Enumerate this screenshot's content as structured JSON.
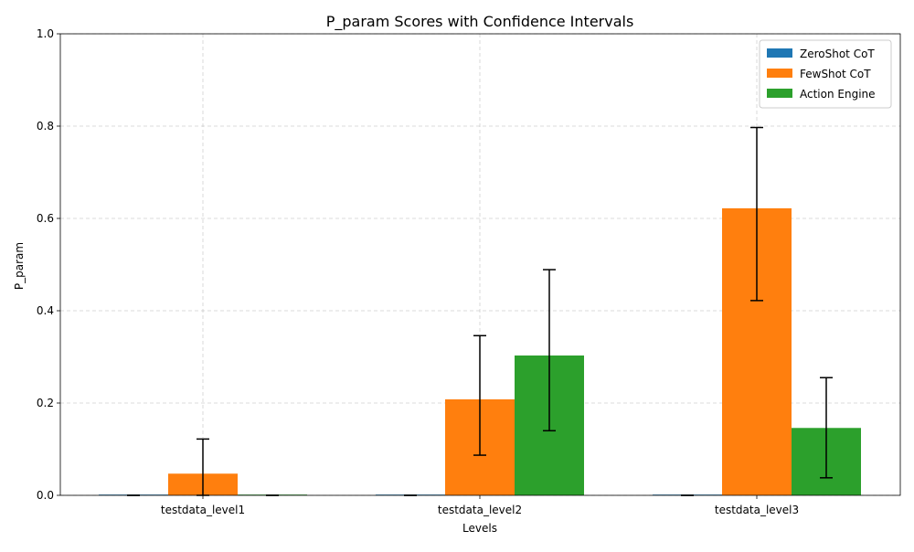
{
  "chart_data": {
    "type": "bar",
    "title": "P_param Scores with Confidence Intervals",
    "xlabel": "Levels",
    "ylabel": "P_param",
    "ylim": [
      0,
      1.0
    ],
    "yticks": [
      "0.0",
      "0.2",
      "0.4",
      "0.6",
      "0.8",
      "1.0"
    ],
    "categories": [
      "testdata_level1",
      "testdata_level2",
      "testdata_level3"
    ],
    "series": [
      {
        "name": "ZeroShot CoT",
        "color": "#1f77b4",
        "values": [
          0.0,
          0.0,
          0.0
        ],
        "ci_low": [
          0.0,
          0.0,
          0.0
        ],
        "ci_high": [
          0.0,
          0.0,
          0.0
        ]
      },
      {
        "name": "FewShot CoT",
        "color": "#ff7f0e",
        "values": [
          0.047,
          0.208,
          0.622
        ],
        "ci_low": [
          0.0,
          0.087,
          0.422
        ],
        "ci_high": [
          0.122,
          0.346,
          0.797
        ]
      },
      {
        "name": "Action Engine",
        "color": "#2ca02c",
        "values": [
          0.0,
          0.303,
          0.146
        ],
        "ci_low": [
          0.0,
          0.14,
          0.038
        ],
        "ci_high": [
          0.0,
          0.489,
          0.255
        ]
      }
    ],
    "grid": true,
    "legend_position": "top-right"
  }
}
